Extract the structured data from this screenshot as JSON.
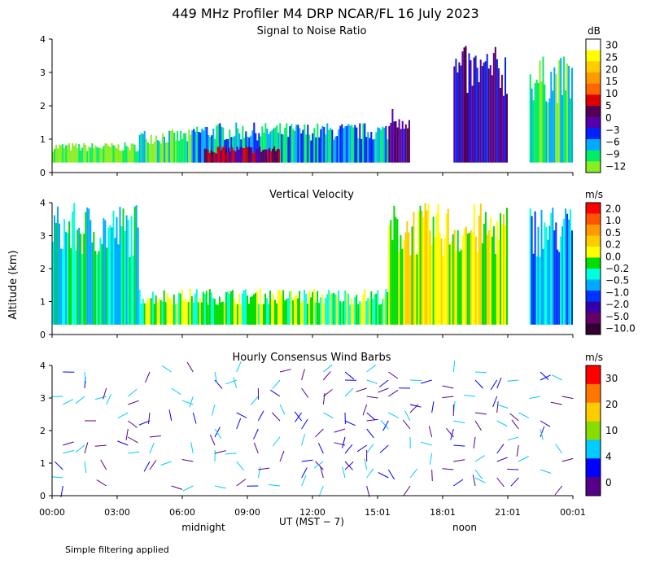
{
  "title": "449 MHz Profiler M4 DRP NCAR/FL 16 July 2023",
  "ylabel": "Altitude (km)",
  "x_ticks": [
    "00:00",
    "03:00",
    "06:00",
    "09:00",
    "12:00",
    "15:01",
    "18:01",
    "21:01",
    "00:01"
  ],
  "x_sub_labels": {
    "midnight": "midnight",
    "utmst": "UT  (MST − 7)",
    "noon": "noon"
  },
  "footnote": "Simple filtering applied",
  "panels": [
    {
      "key": "snr",
      "title": "Signal to Noise Ratio",
      "unit": "dB"
    },
    {
      "key": "vv",
      "title": "Vertical Velocity",
      "unit": "m/s"
    },
    {
      "key": "wb",
      "title": "Hourly Consensus Wind Barbs",
      "unit": "m/s"
    }
  ],
  "chart_data": [
    {
      "type": "heatmap",
      "title": "Signal to Noise Ratio",
      "x_range_hours": [
        0,
        24
      ],
      "ylim": [
        0,
        4
      ],
      "y_ticks": [
        0,
        1,
        2,
        3,
        4
      ],
      "colorbar": {
        "unit": "dB",
        "labels": [
          "30",
          "25",
          "20",
          "15",
          "10",
          "5",
          "0",
          "−3",
          "−6",
          "−9",
          "−12"
        ],
        "colors": [
          "#ffffff",
          "#ffff00",
          "#ffcc00",
          "#ff9900",
          "#ff6600",
          "#dd0000",
          "#550055",
          "#5500aa",
          "#0022ff",
          "#00aaff",
          "#00ee66",
          "#88ee22"
        ]
      },
      "approx_layers": [
        {
          "hours": [
            0,
            4
          ],
          "top_km": 0.9,
          "dominant_db": -12
        },
        {
          "hours": [
            4,
            6.5
          ],
          "top_km": 1.3,
          "dominant_db": -9
        },
        {
          "hours": [
            6.5,
            15.5
          ],
          "top_km": 1.5,
          "dominant_db": -6
        },
        {
          "hours": [
            7,
            10.5
          ],
          "top_km": 0.8,
          "dominant_db": 3
        },
        {
          "hours": [
            15.5,
            16.5
          ],
          "top_km": 2.0,
          "dominant_db": 0
        },
        {
          "hours": [
            18.5,
            21
          ],
          "top_km": 3.8,
          "dominant_db": 0
        },
        {
          "hours": [
            22,
            24
          ],
          "top_km": 3.5,
          "dominant_db": -9
        }
      ]
    },
    {
      "type": "heatmap",
      "title": "Vertical Velocity",
      "x_range_hours": [
        0,
        24
      ],
      "ylim": [
        0,
        4
      ],
      "y_ticks": [
        0,
        1,
        2,
        3,
        4
      ],
      "colorbar": {
        "unit": "m/s",
        "labels": [
          "2.0",
          "1.0",
          "0.5",
          "0.2",
          "0.0",
          "−0.2",
          "−0.5",
          "−1.0",
          "−2.0",
          "−5.0",
          "−10.0"
        ],
        "colors": [
          "#ff0000",
          "#ff5500",
          "#ff9900",
          "#ffcc00",
          "#ffff00",
          "#00dd00",
          "#00ffdd",
          "#00aaff",
          "#0033ff",
          "#3300aa",
          "#660066",
          "#330033"
        ]
      },
      "approx_layers": [
        {
          "hours": [
            0,
            4
          ],
          "top_km": 4.0,
          "dominant_ms": -0.2
        },
        {
          "hours": [
            4,
            15.5
          ],
          "top_km": 1.4,
          "dominant_ms": 0.0
        },
        {
          "hours": [
            15.5,
            21
          ],
          "top_km": 4.0,
          "dominant_ms": 0.2
        },
        {
          "hours": [
            22,
            24
          ],
          "top_km": 4.0,
          "dominant_ms": -0.5
        }
      ]
    },
    {
      "type": "wind_barbs",
      "title": "Hourly Consensus Wind Barbs",
      "x_range_hours": [
        0,
        24
      ],
      "ylim": [
        0,
        4
      ],
      "y_ticks": [
        0,
        1,
        2,
        3,
        4
      ],
      "colorbar": {
        "unit": "m/s",
        "labels": [
          "30",
          "20",
          "10",
          "4",
          "0"
        ],
        "colors": [
          "#ff0000",
          "#ff7700",
          "#ffcc00",
          "#88dd00",
          "#00ccff",
          "#0000ff",
          "#550088"
        ]
      },
      "hours": [
        0,
        1,
        2,
        3,
        4,
        5,
        6,
        7,
        8,
        9,
        10,
        11,
        12,
        13,
        14,
        15,
        16,
        17,
        18,
        19,
        20,
        21,
        22,
        23
      ],
      "note": "Barb columns at each hour; speeds mostly 0–10 m/s"
    }
  ]
}
